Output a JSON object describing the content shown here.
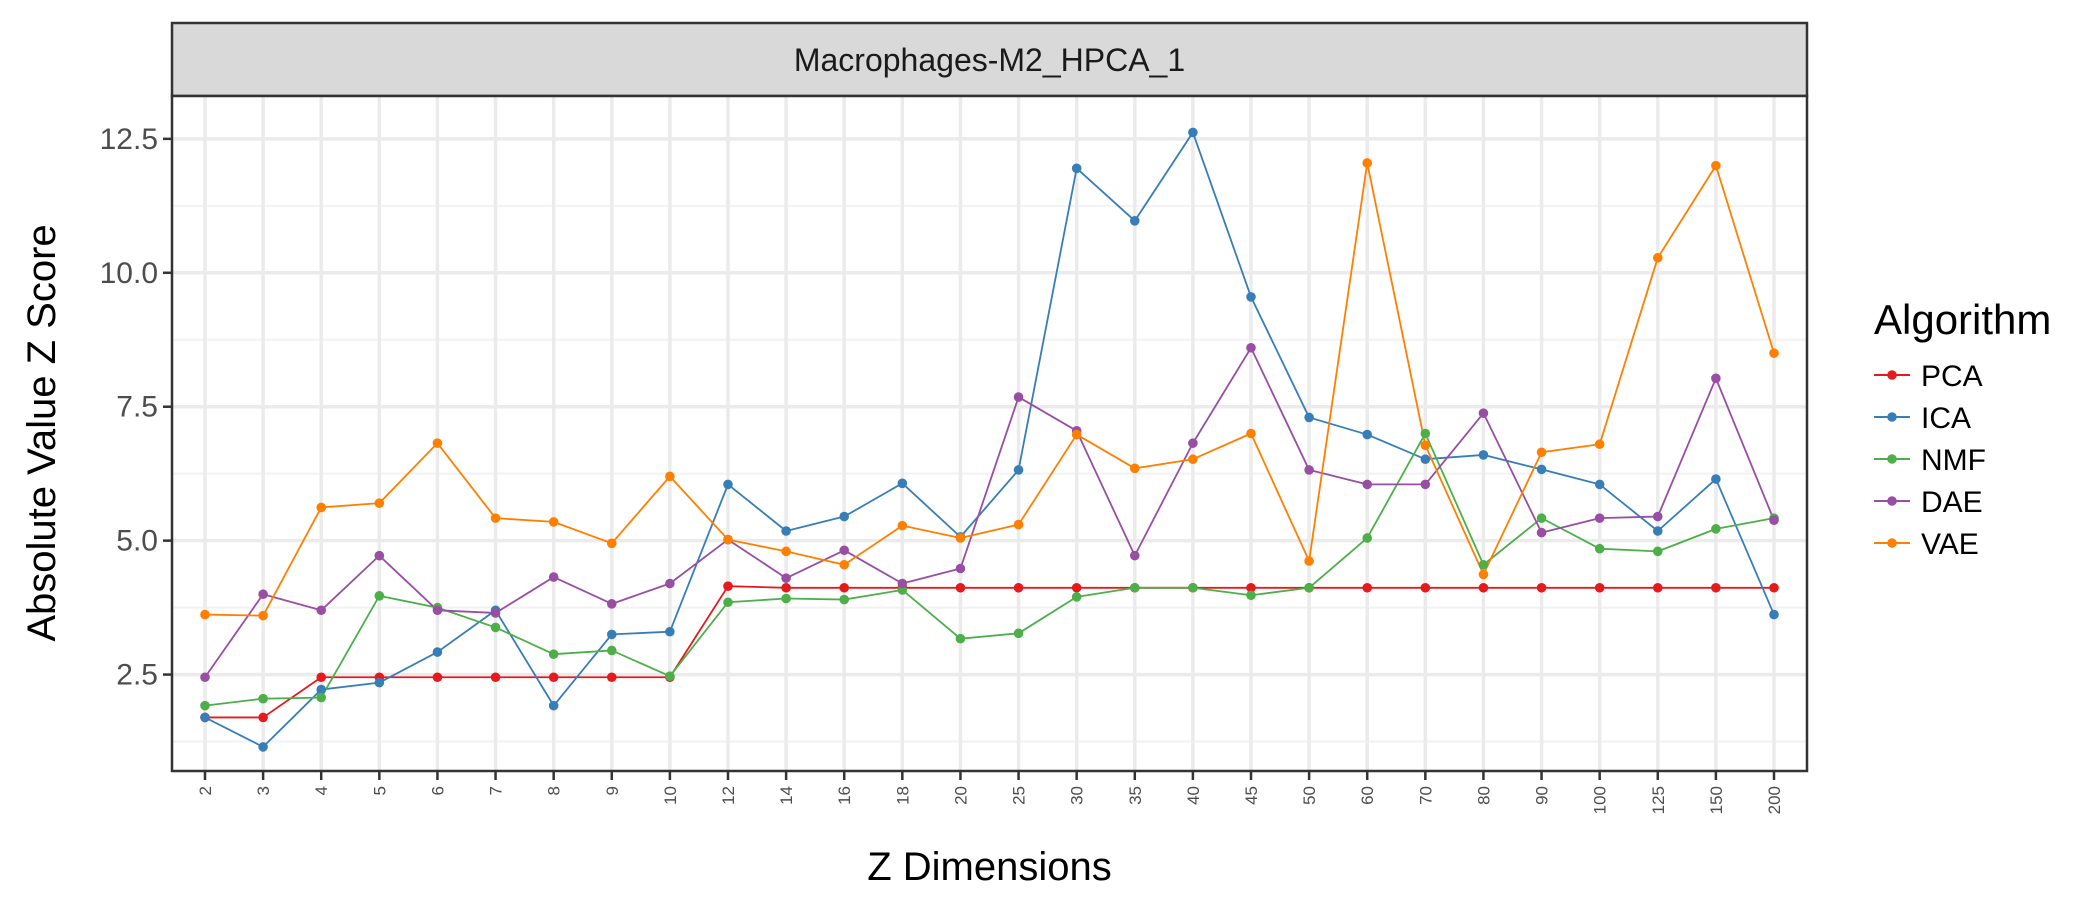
{
  "chart_data": {
    "type": "line",
    "facet_title": "Macrophages-M2_HPCA_1",
    "xlabel": "Z Dimensions",
    "ylabel": "Absolute Value Z Score",
    "categories": [
      "2",
      "3",
      "4",
      "5",
      "6",
      "7",
      "8",
      "9",
      "10",
      "12",
      "14",
      "16",
      "18",
      "20",
      "25",
      "30",
      "35",
      "40",
      "45",
      "50",
      "60",
      "70",
      "80",
      "90",
      "100",
      "125",
      "150",
      "200"
    ],
    "ylim": [
      0.7,
      13.3
    ],
    "yticks": [
      2.5,
      5.0,
      7.5,
      10.0,
      12.5
    ],
    "ytick_labels": [
      "2.5",
      "5.0",
      "7.5",
      "10.0",
      "12.5"
    ],
    "grid": true,
    "legend": {
      "title": "Algorithm",
      "position": "right"
    },
    "series": [
      {
        "name": "PCA",
        "color": "#e41a1c",
        "values": [
          1.7,
          1.7,
          2.45,
          2.45,
          2.45,
          2.45,
          2.45,
          2.45,
          2.45,
          4.15,
          4.12,
          4.12,
          4.12,
          4.12,
          4.12,
          4.12,
          4.12,
          4.12,
          4.12,
          4.12,
          4.12,
          4.12,
          4.12,
          4.12,
          4.12,
          4.12,
          4.12,
          4.12
        ]
      },
      {
        "name": "ICA",
        "color": "#377eb8",
        "values": [
          1.7,
          1.15,
          2.22,
          2.35,
          2.92,
          3.7,
          1.92,
          3.25,
          3.3,
          6.05,
          5.18,
          5.45,
          6.07,
          5.07,
          6.32,
          11.95,
          10.97,
          12.62,
          9.55,
          7.3,
          6.98,
          6.52,
          6.6,
          6.33,
          6.05,
          5.18,
          6.15,
          3.62
        ]
      },
      {
        "name": "NMF",
        "color": "#4daf4a",
        "values": [
          1.92,
          2.05,
          2.07,
          3.97,
          3.75,
          3.38,
          2.88,
          2.95,
          2.47,
          3.85,
          3.92,
          3.9,
          4.08,
          3.17,
          3.27,
          3.95,
          4.12,
          4.12,
          3.98,
          4.12,
          5.05,
          7.0,
          4.55,
          5.42,
          4.85,
          4.8,
          5.22,
          5.42
        ]
      },
      {
        "name": "DAE",
        "color": "#984ea3",
        "values": [
          2.45,
          4.0,
          3.7,
          4.72,
          3.7,
          3.65,
          4.32,
          3.82,
          4.2,
          5.02,
          4.3,
          4.82,
          4.2,
          4.48,
          7.68,
          7.05,
          4.72,
          6.82,
          8.6,
          6.32,
          6.05,
          6.05,
          7.38,
          5.15,
          5.42,
          5.45,
          8.03,
          5.38
        ]
      },
      {
        "name": "VAE",
        "color": "#ff7f00",
        "values": [
          3.62,
          3.6,
          5.62,
          5.7,
          6.82,
          5.42,
          5.35,
          4.95,
          6.2,
          5.02,
          4.8,
          4.55,
          5.28,
          5.05,
          5.3,
          6.98,
          6.35,
          6.52,
          7.0,
          4.62,
          12.05,
          6.78,
          4.37,
          6.65,
          6.8,
          10.28,
          12.0,
          8.5
        ]
      }
    ]
  }
}
